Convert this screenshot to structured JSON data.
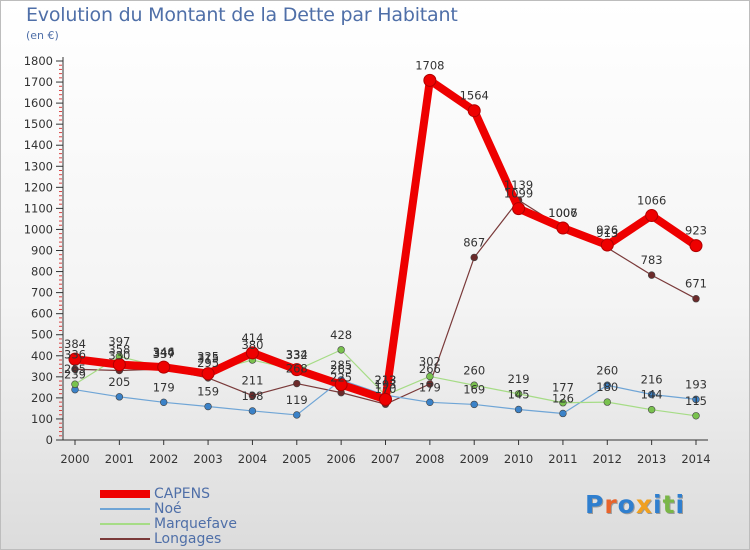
{
  "page": {
    "title": "Evolution du Montant de la Dette par Habitant",
    "subtitle": "(en €)",
    "logo_text": "Proxiti",
    "logo_colors": [
      "#2f7fcf",
      "#e8642c",
      "#2f7fcf",
      "#f0a020",
      "#2f7fcf",
      "#7ab648",
      "#2f7fcf"
    ]
  },
  "chart_data": {
    "type": "line",
    "title": "Evolution du Montant de la Dette par Habitant",
    "subtitle": "(en €)",
    "xlabel": "",
    "ylabel": "",
    "categories": [
      "2000",
      "2001",
      "2002",
      "2003",
      "2004",
      "2005",
      "2006",
      "2007",
      "2008",
      "2009",
      "2010",
      "2011",
      "2012",
      "2013",
      "2014"
    ],
    "ylim": [
      0,
      1800
    ],
    "yticks": [
      0,
      100,
      200,
      300,
      400,
      500,
      600,
      700,
      800,
      900,
      1000,
      1100,
      1200,
      1300,
      1400,
      1500,
      1600,
      1700,
      1800
    ],
    "grid": false,
    "legend_position": "bottom-left",
    "series": [
      {
        "name": "Longages",
        "color": "#7a3a3a",
        "line_width": 1.2,
        "marker_color": "#6b2a2a",
        "values": [
          336,
          330,
          337,
          295,
          211,
          268,
          225,
          170,
          266,
          867,
          1139,
          1006,
          913,
          783,
          671
        ]
      },
      {
        "name": "Noé",
        "color": "#6fa5d6",
        "line_width": 1.2,
        "marker_color": "#3b82c8",
        "values": [
          239,
          205,
          179,
          159,
          138,
          119,
          285,
          213,
          179,
          169,
          145,
          126,
          260,
          216,
          193
        ]
      },
      {
        "name": "Marquefave",
        "color": "#a6dc86",
        "line_width": 1.2,
        "marker_color": "#79c24e",
        "values": [
          265,
          397,
          344,
          325,
          380,
          332,
          428,
          213,
          302,
          260,
          219,
          177,
          180,
          144,
          115
        ]
      },
      {
        "name": "CAPENS",
        "color": "#ee0000",
        "line_width": 8,
        "marker_color": "#ee0000",
        "values": [
          384,
          358,
          346,
          315,
          414,
          334,
          263,
          193,
          1708,
          1564,
          1099,
          1007,
          926,
          1066,
          923
        ]
      }
    ],
    "data_labels": [
      {
        "series": "CAPENS",
        "labels": [
          "384",
          "358",
          "346",
          "315",
          "414",
          "334",
          "263",
          "193",
          "1708",
          "1564",
          "1099",
          "1007",
          "926",
          "1066",
          "923"
        ]
      },
      {
        "series": "Longages",
        "labels": [
          "336",
          "330",
          "337",
          "295",
          "211",
          "268",
          "225",
          "170",
          "266",
          "867",
          "1139",
          "1006",
          "913",
          "783",
          "671"
        ]
      },
      {
        "series": "Noé",
        "labels": [
          "239",
          "205",
          "179",
          "159",
          "138",
          "119",
          "285",
          "213",
          "179",
          "169",
          "145",
          "126",
          "260",
          "216",
          "193"
        ]
      },
      {
        "series": "Marquefave",
        "labels": [
          "265",
          "397",
          "344",
          "325",
          "380",
          "332",
          "428",
          "213",
          "302",
          "260",
          "219",
          "177",
          "180",
          "144",
          "115"
        ]
      }
    ],
    "legend": [
      "CAPENS",
      "Noé",
      "Marquefave",
      "Longages"
    ]
  }
}
